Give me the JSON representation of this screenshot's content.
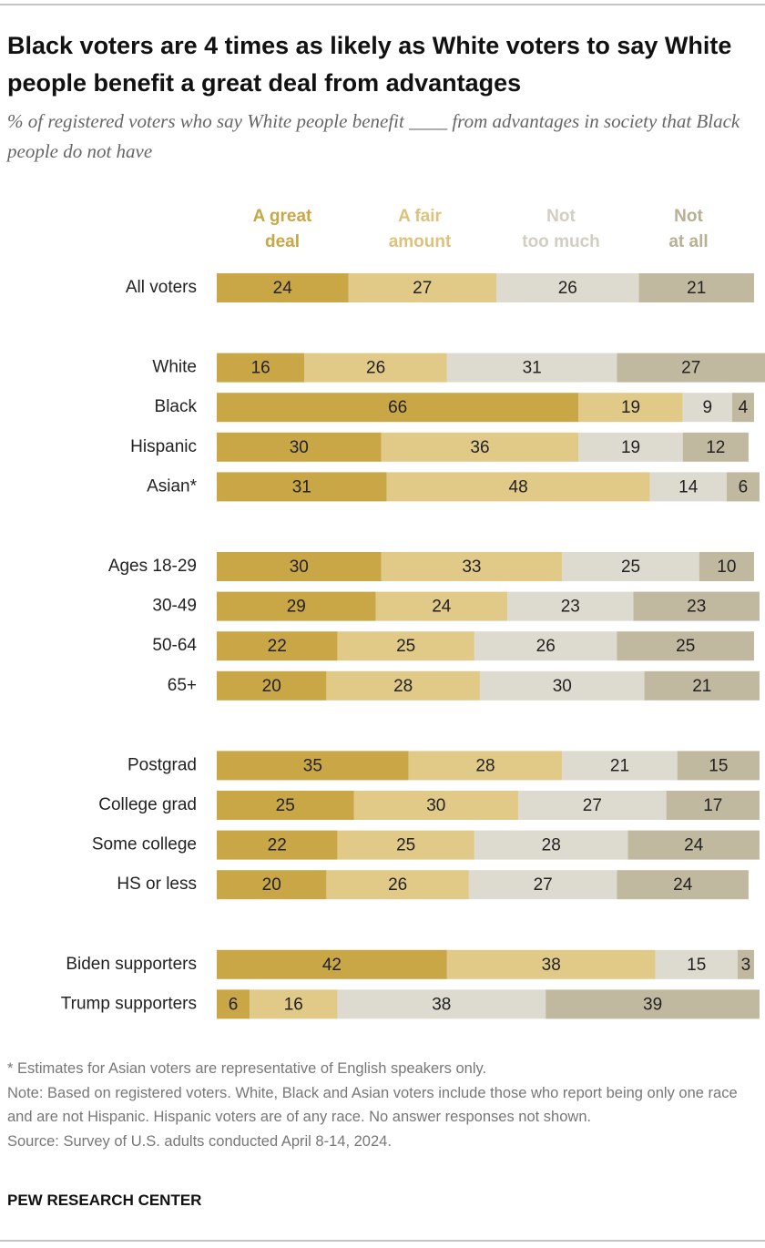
{
  "chart_data": {
    "type": "stacked-bar",
    "title": "Black voters are 4 times as likely as White voters to say White people benefit a great deal from advantages",
    "subtitle": "% of registered voters who say White people benefit ____ from advantages in society that Black people do not have",
    "categories": [
      "All voters",
      "White",
      "Black",
      "Hispanic",
      "Asian*",
      "Ages 18-29",
      "30-49",
      "50-64",
      "65+",
      "Postgrad",
      "College grad",
      "Some college",
      "HS or less",
      "Biden supporters",
      "Trump supporters"
    ],
    "series": [
      {
        "name": "A great\ndeal",
        "color": "#c9a646",
        "label_color": "#c9a646",
        "values": [
          24,
          16,
          66,
          30,
          31,
          30,
          29,
          22,
          20,
          35,
          25,
          22,
          20,
          42,
          6
        ]
      },
      {
        "name": "A fair\namount",
        "color": "#e1ca88",
        "label_color": "#dcc27c",
        "values": [
          27,
          26,
          19,
          36,
          48,
          33,
          24,
          25,
          28,
          28,
          30,
          25,
          26,
          38,
          16
        ]
      },
      {
        "name": "Not\ntoo much",
        "color": "#dddad0",
        "label_color": "#d2cec2",
        "values": [
          26,
          31,
          9,
          19,
          14,
          25,
          23,
          26,
          30,
          21,
          27,
          28,
          27,
          15,
          38
        ]
      },
      {
        "name": "Not\nat all",
        "color": "#c1b99f",
        "label_color": "#b9b093",
        "values": [
          21,
          27,
          4,
          12,
          6,
          10,
          23,
          25,
          21,
          15,
          17,
          24,
          24,
          3,
          39
        ]
      }
    ],
    "xlim": [
      0,
      100
    ],
    "notes": [
      "* Estimates for Asian voters are representative of English speakers only.",
      "Note: Based on registered voters. White, Black and Asian voters include those who report being only one race and are not Hispanic. Hispanic voters are of any race. No answer responses not shown.",
      "Source: Survey of U.S. adults conducted April 8-14, 2024."
    ],
    "source_org": "PEW RESEARCH CENTER"
  }
}
